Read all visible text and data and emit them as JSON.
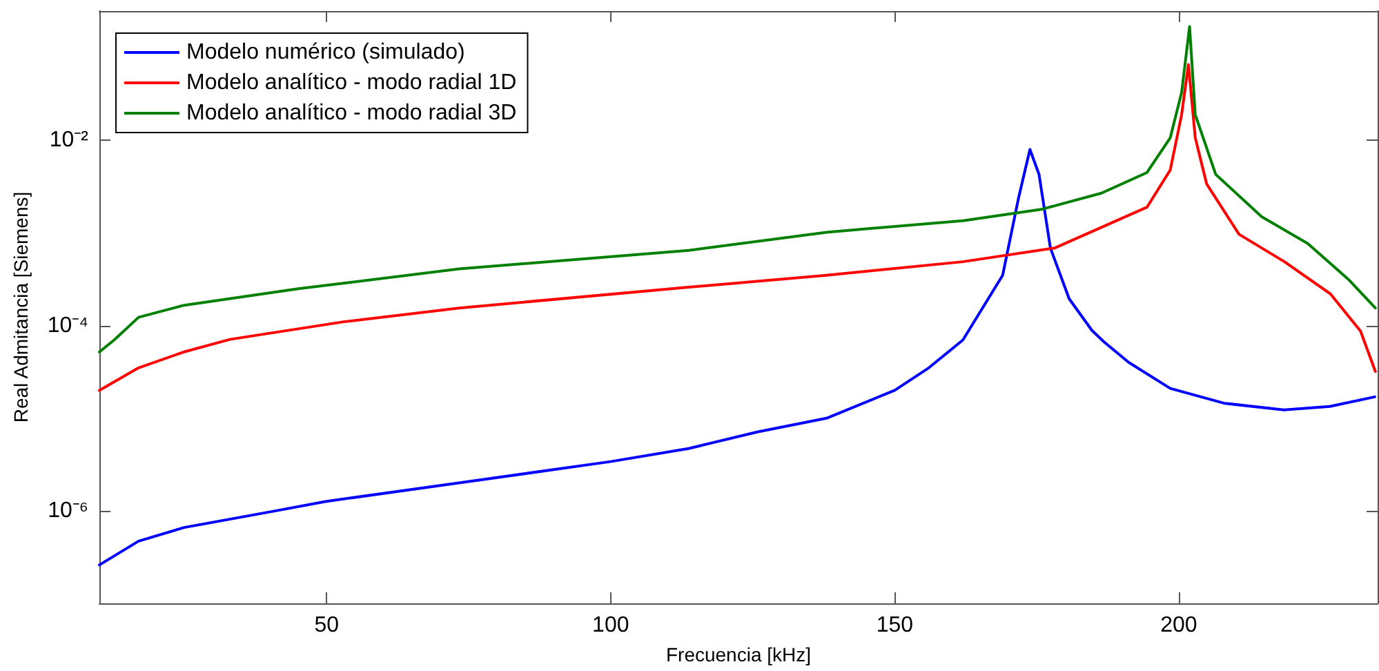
{
  "chart_data": {
    "type": "line",
    "xlabel": "Frecuencia [kHz]",
    "ylabel": "Real Admitancia [Siemens]",
    "xlim": [
      10,
      235
    ],
    "xticks": [
      50,
      100,
      150,
      200
    ],
    "ylim": [
      1e-07,
      0.25
    ],
    "yticks": [
      {
        "value": 0.01,
        "label": "10⁻²"
      },
      {
        "value": 0.0001,
        "label": "10⁻⁴"
      },
      {
        "value": 1e-06,
        "label": "10⁻⁶"
      }
    ],
    "log": "y",
    "grid": false,
    "legend": "top left",
    "marker": "none",
    "line_style": "solid",
    "series": [
      {
        "name": "Modelo numérico (simulado)",
        "color": "#0000ff",
        "x": [
          10,
          16.9,
          24.9,
          41.1,
          49.8,
          73.3,
          100,
          113.7,
          125.8,
          138,
          150,
          156,
          162,
          169,
          171.8,
          173.8,
          175.4,
          177.4,
          180.7,
          184.7,
          186.8,
          191.2,
          198.5,
          208,
          218.5,
          226.6,
          234.5
        ],
        "values": [
          2.6e-07,
          4.7e-07,
          6.6e-07,
          1e-06,
          1.26e-06,
          2e-06,
          3.4e-06,
          4.7e-06,
          7.1e-06,
          1e-05,
          2e-05,
          3.5e-05,
          7e-05,
          0.00035,
          0.0024,
          0.008,
          0.0043,
          0.00069,
          0.000195,
          8.9e-05,
          6.7e-05,
          4e-05,
          2.1e-05,
          1.45e-05,
          1.23e-05,
          1.34e-05,
          1.7e-05
        ]
      },
      {
        "name": "Modelo analítico - modo radial 1D",
        "color": "#ff0000",
        "x": [
          10,
          16.9,
          24.9,
          33,
          53,
          73.3,
          113.7,
          138,
          162,
          178.2,
          194.4,
          198.5,
          200.5,
          201.7,
          202.9,
          204.9,
          210.6,
          218.6,
          226.7,
          232,
          234.6
        ],
        "values": [
          2e-05,
          3.5e-05,
          5.2e-05,
          7.1e-05,
          0.00011,
          0.000155,
          0.00026,
          0.00035,
          0.00049,
          0.00069,
          0.0019,
          0.0048,
          0.019,
          0.066,
          0.0107,
          0.0034,
          0.00097,
          0.00049,
          0.00022,
          8.7e-05,
          3.2e-05
        ]
      },
      {
        "name": "Modelo analítico - modo radial 3D",
        "color": "#008000",
        "x": [
          10,
          12.6,
          16.9,
          24.9,
          45,
          73.3,
          113.7,
          138,
          162,
          175.8,
          186.4,
          194.4,
          198.5,
          200.5,
          201.9,
          202.9,
          206.5,
          214.6,
          222.7,
          230,
          234.6
        ],
        "values": [
          5.2e-05,
          7e-05,
          0.000123,
          0.000166,
          0.00025,
          0.00041,
          0.00065,
          0.00102,
          0.00136,
          0.0018,
          0.0027,
          0.0045,
          0.0107,
          0.033,
          0.17,
          0.019,
          0.0043,
          0.0015,
          0.00077,
          0.00031,
          0.000155
        ]
      }
    ]
  }
}
